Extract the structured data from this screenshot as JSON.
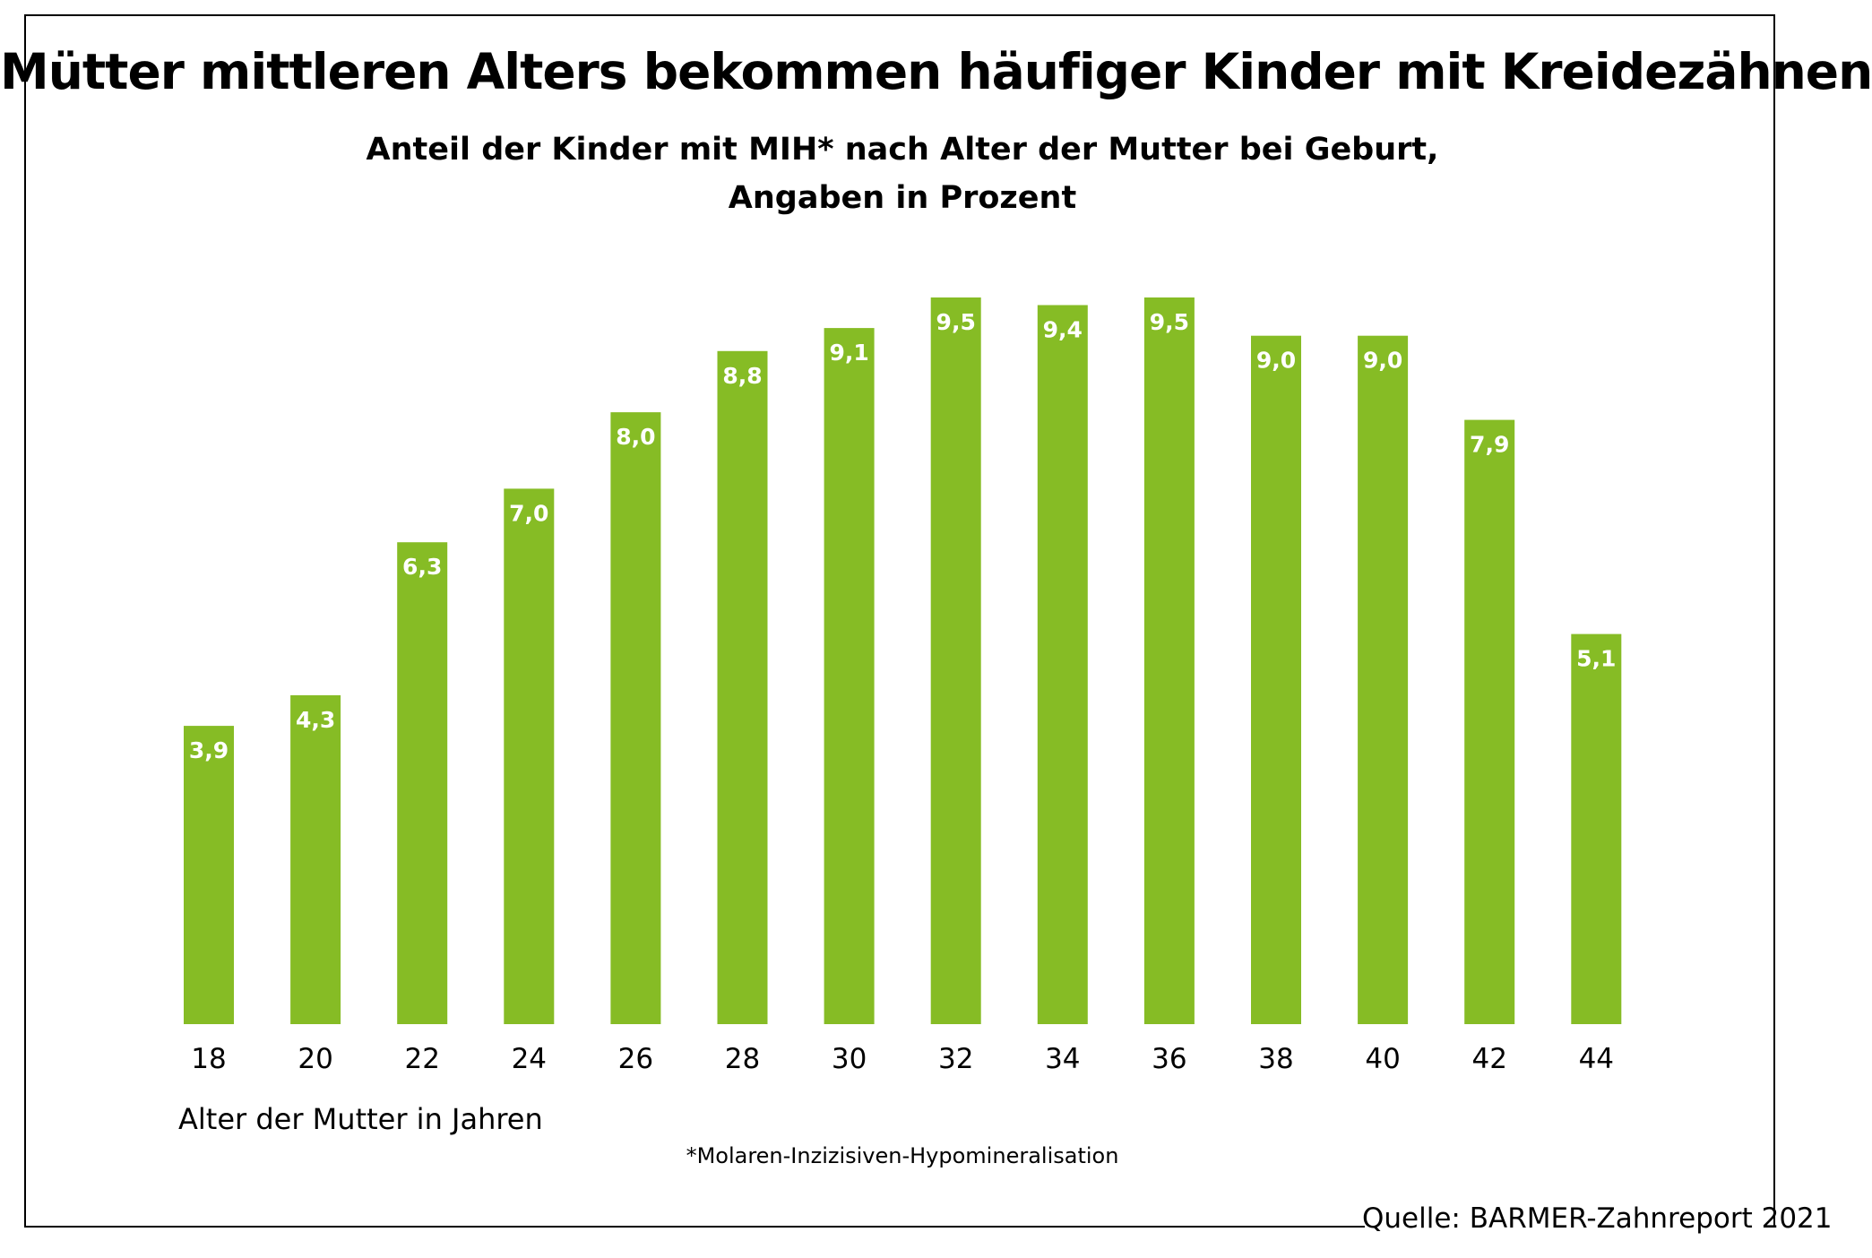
{
  "title": "Mütter mittleren Alters bekommen häufiger Kinder mit Kreidezähnen",
  "subtitle_line1": "Anteil der Kinder mit MIH* nach Alter der Mutter bei Geburt,",
  "subtitle_line2": "Angaben in Prozent",
  "footnote": "*Molaren-Inzizisiven-Hypomineralisation",
  "source": "Quelle: BARMER-Zahnreport 2021",
  "colors": {
    "bar": "#86bc25",
    "bar_label": "#ffffff",
    "text": "#000000"
  },
  "chart_data": {
    "type": "bar",
    "title": "Mütter mittleren Alters bekommen häufiger Kinder mit Kreidezähnen",
    "subtitle": "Anteil der Kinder mit MIH* nach Alter der Mutter bei Geburt, Angaben in Prozent",
    "xlabel": "Alter der Mutter in Jahren",
    "ylabel": "",
    "categories": [
      "18",
      "20",
      "22",
      "24",
      "26",
      "28",
      "30",
      "32",
      "34",
      "36",
      "38",
      "40",
      "42",
      "44"
    ],
    "values": [
      3.9,
      4.3,
      6.3,
      7.0,
      8.0,
      8.8,
      9.1,
      9.5,
      9.4,
      9.5,
      9.0,
      9.0,
      7.9,
      5.1
    ],
    "value_labels": [
      "3,9",
      "4,3",
      "6,3",
      "7,0",
      "8,0",
      "8,8",
      "9,1",
      "9,5",
      "9,4",
      "9,5",
      "9,0",
      "9,0",
      "7,9",
      "5,1"
    ],
    "ylim": [
      0,
      9.5
    ],
    "grid": false,
    "legend": "none"
  }
}
